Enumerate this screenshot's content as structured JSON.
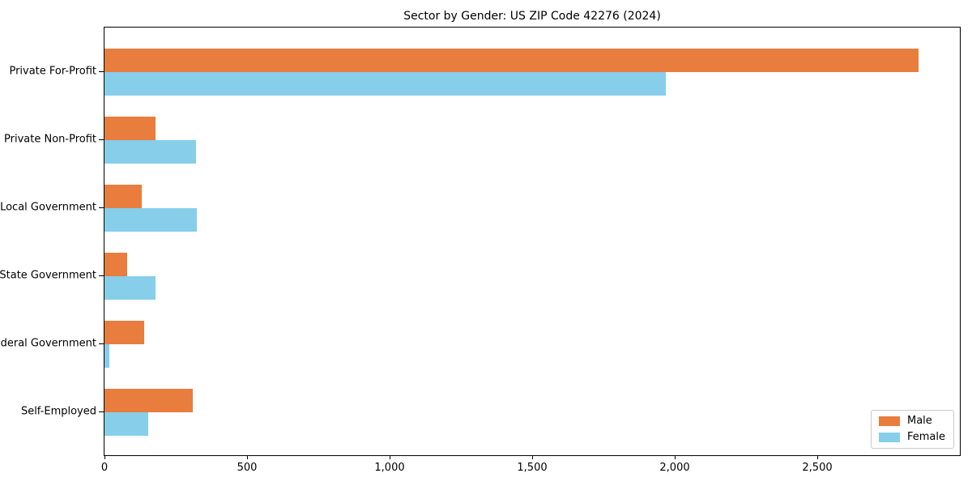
{
  "chart_data": {
    "type": "bar",
    "orientation": "horizontal",
    "title": "Sector by Gender: US ZIP Code 42276 (2024)",
    "categories": [
      "Private For-Profit",
      "Private Non-Profit",
      "Local Government",
      "State Government",
      "Federal Government",
      "Self-Employed"
    ],
    "series": [
      {
        "name": "Male",
        "color": "#e87d3e",
        "values": [
          2855,
          180,
          130,
          78,
          140,
          310
        ]
      },
      {
        "name": "Female",
        "color": "#87ceeb",
        "values": [
          1970,
          320,
          325,
          180,
          18,
          152
        ]
      }
    ],
    "xlabel": "",
    "ylabel": "",
    "xlim": [
      0,
      3000
    ],
    "xticks": {
      "values": [
        0,
        500,
        1000,
        1500,
        2000,
        2500
      ],
      "labels": [
        "0",
        "500",
        "1,000",
        "1,500",
        "2,000",
        "2,500"
      ]
    },
    "grid": false,
    "legend": {
      "position": "lower-right",
      "entries": [
        "Male",
        "Female"
      ]
    }
  },
  "colors": {
    "male": "#e87d3e",
    "female": "#87ceeb",
    "spine": "#000000",
    "legend_border": "#c9c9c9",
    "background": "#ffffff"
  }
}
